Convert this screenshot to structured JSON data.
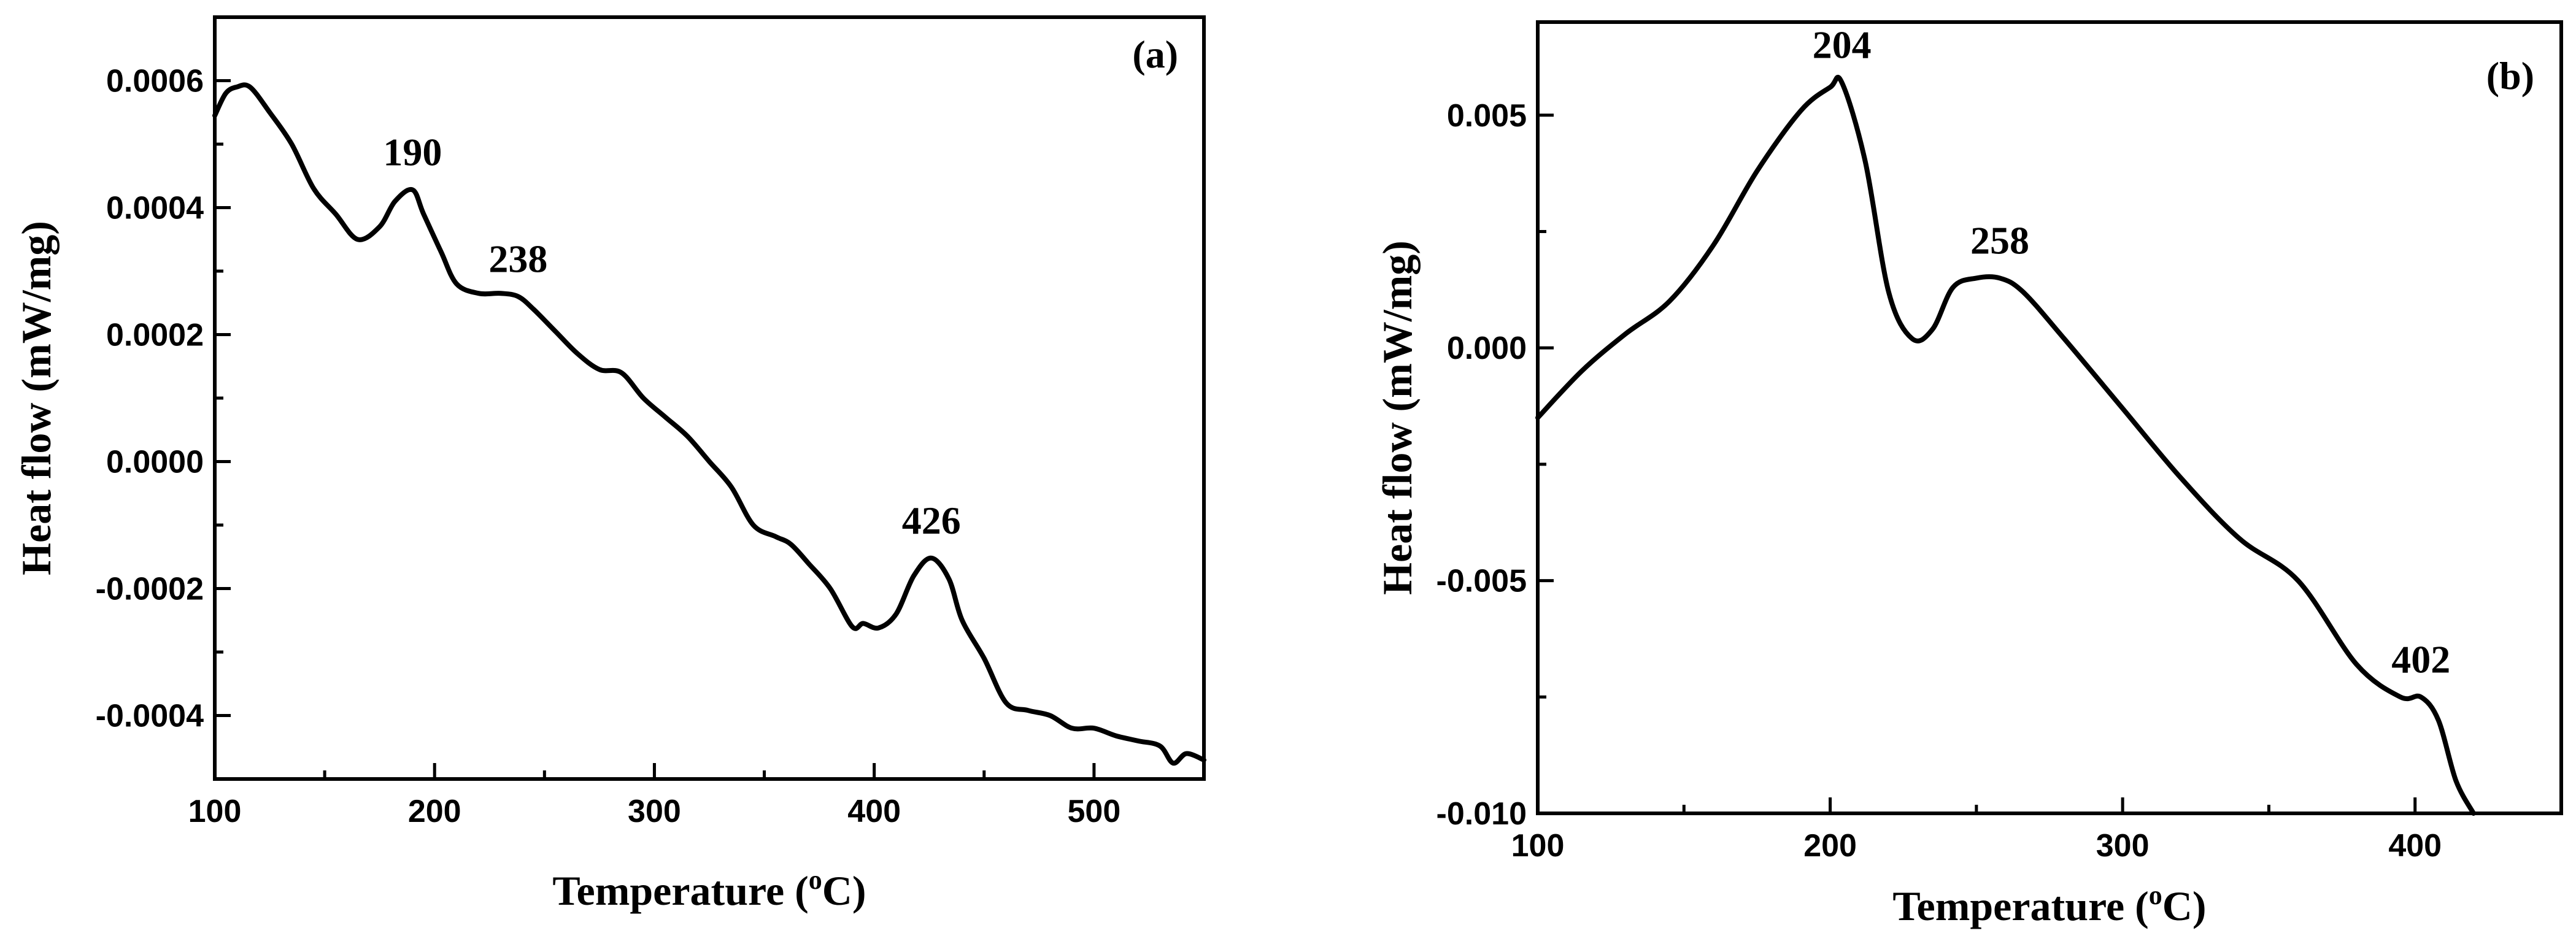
{
  "chart_data": [
    {
      "type": "line",
      "panel_label": "(a)",
      "xlabel": "Temperature (",
      "xlabel_sup": "o",
      "xlabel_tail": "C)",
      "ylabel": "Heat flow (mW/mg)",
      "xlim": [
        100,
        550
      ],
      "ylim": [
        -0.0005,
        0.0007
      ],
      "xticks": [
        100,
        200,
        300,
        400,
        500
      ],
      "xtick_labels": [
        "100",
        "200",
        "300",
        "400",
        "500"
      ],
      "yticks": [
        -0.0004,
        -0.0002,
        0.0,
        0.0002,
        0.0004,
        0.0006
      ],
      "ytick_labels": [
        "-0.0004",
        "-0.0002",
        "0.0000",
        "0.0002",
        "0.0004",
        "0.0006"
      ],
      "x": [
        100,
        105,
        110,
        116,
        125,
        135,
        145,
        155,
        165,
        175,
        182,
        190,
        195,
        203,
        210,
        220,
        230,
        238,
        245,
        255,
        265,
        275,
        285,
        295,
        305,
        315,
        325,
        335,
        345,
        355,
        362,
        370,
        380,
        390,
        395,
        402,
        410,
        418,
        426,
        434,
        440,
        450,
        460,
        470,
        480,
        490,
        500,
        510,
        520,
        530,
        536,
        542,
        550
      ],
      "y": [
        0.000545,
        0.00058,
        0.00059,
        0.00059,
        0.00055,
        0.0005,
        0.00043,
        0.00039,
        0.00035,
        0.00037,
        0.00041,
        0.000428,
        0.00039,
        0.00033,
        0.00028,
        0.000265,
        0.000265,
        0.00026,
        0.00024,
        0.000205,
        0.00017,
        0.000145,
        0.00014,
        0.0001,
        7e-05,
        4e-05,
        0.0,
        -4e-05,
        -0.0001,
        -0.000118,
        -0.00013,
        -0.00016,
        -0.0002,
        -0.00026,
        -0.000255,
        -0.000262,
        -0.00024,
        -0.00018,
        -0.000152,
        -0.000185,
        -0.00025,
        -0.00031,
        -0.00038,
        -0.000392,
        -0.0004,
        -0.00042,
        -0.00042,
        -0.000432,
        -0.00044,
        -0.000448,
        -0.000475,
        -0.00046,
        -0.00047
      ],
      "annotations": [
        {
          "text": "190",
          "x": 190,
          "y": 0.000428
        },
        {
          "text": "238",
          "x": 238,
          "y": 0.00026
        },
        {
          "text": "426",
          "x": 426,
          "y": -0.000152
        }
      ]
    },
    {
      "type": "line",
      "panel_label": "(b)",
      "xlabel": "Temperature (",
      "xlabel_sup": "o",
      "xlabel_tail": "C)",
      "ylabel": "Heat flow (mW/mg)",
      "xlim": [
        100,
        450
      ],
      "ylim": [
        -0.01,
        0.007
      ],
      "xticks": [
        100,
        200,
        300,
        400
      ],
      "xtick_labels": [
        "100",
        "200",
        "300",
        "400"
      ],
      "yticks": [
        -0.01,
        -0.005,
        0.0,
        0.005
      ],
      "ytick_labels": [
        "-0.010",
        "-0.005",
        "0.000",
        "0.005"
      ],
      "x": [
        100,
        115,
        130,
        145,
        160,
        175,
        190,
        200,
        204,
        212,
        220,
        228,
        235,
        242,
        250,
        258,
        266,
        280,
        300,
        320,
        340,
        360,
        380,
        395,
        402,
        408,
        414,
        420
      ],
      "y": [
        -0.0015,
        -0.0005,
        0.0003,
        0.001,
        0.0022,
        0.0038,
        0.0051,
        0.0056,
        0.0057,
        0.004,
        0.0012,
        0.0002,
        0.0004,
        0.0013,
        0.0015,
        0.0015,
        0.0012,
        0.0002,
        -0.0013,
        -0.0028,
        -0.0041,
        -0.005,
        -0.0068,
        -0.0075,
        -0.0075,
        -0.008,
        -0.0093,
        -0.01
      ],
      "annotations": [
        {
          "text": "204",
          "x": 204,
          "y": 0.0057
        },
        {
          "text": "258",
          "x": 258,
          "y": 0.0015
        },
        {
          "text": "402",
          "x": 402,
          "y": -0.0075
        }
      ]
    }
  ]
}
